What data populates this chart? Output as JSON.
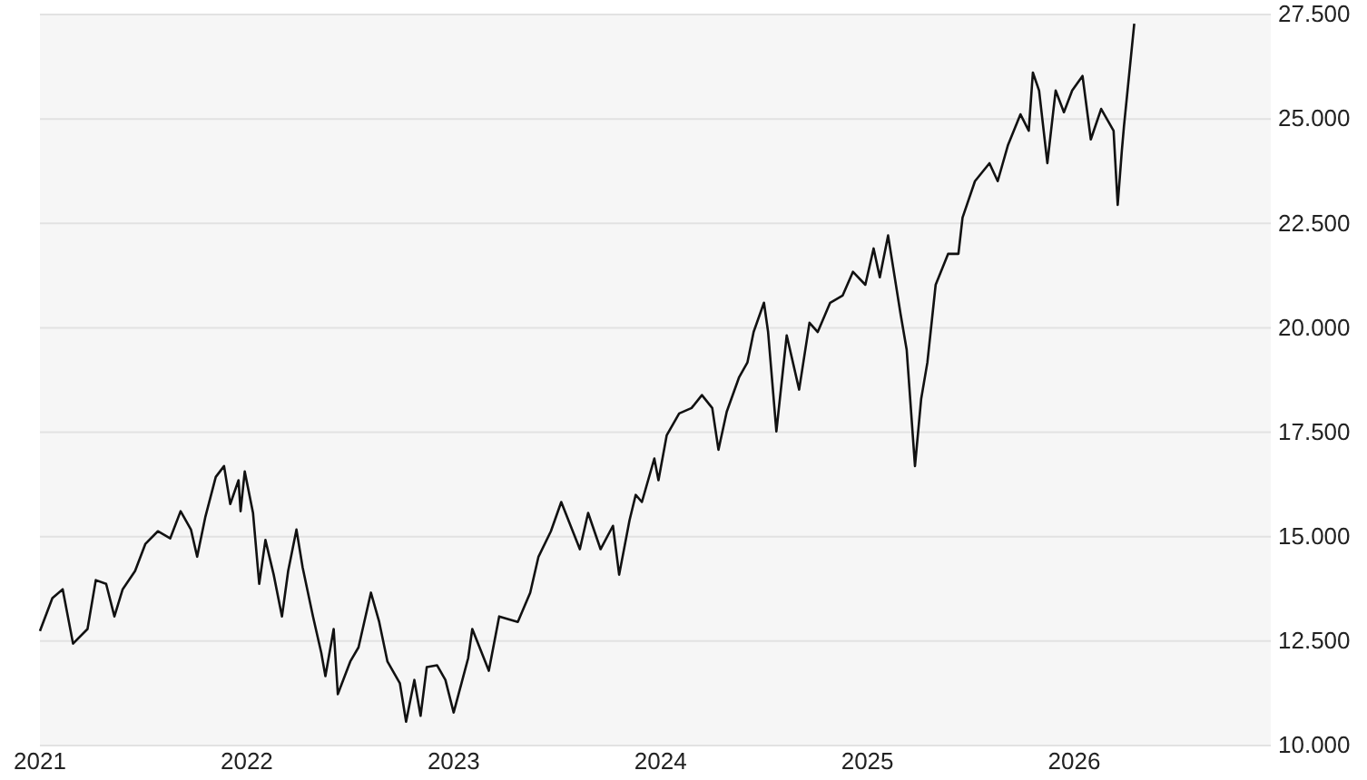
{
  "chart_data": {
    "type": "line",
    "color": "#111111",
    "x": [
      2021.0,
      2021.06,
      2021.11,
      2021.16,
      2021.23,
      2021.27,
      2021.32,
      2021.36,
      2021.4,
      2021.46,
      2021.51,
      2021.57,
      2021.63,
      2021.68,
      2021.73,
      2021.76,
      2021.8,
      2021.85,
      2021.89,
      2021.92,
      2021.96,
      2021.97,
      2021.99,
      2022.03,
      2022.06,
      2022.09,
      2022.13,
      2022.17,
      2022.2,
      2022.24,
      2022.27,
      2022.32,
      2022.36,
      2022.38,
      2022.42,
      2022.44,
      2022.5,
      2022.54,
      2022.6,
      2022.64,
      2022.68,
      2022.74,
      2022.77,
      2022.81,
      2022.84,
      2022.87,
      2022.92,
      2022.96,
      2023.0,
      2023.07,
      2023.09,
      2023.17,
      2023.22,
      2023.31,
      2023.37,
      2023.41,
      2023.47,
      2023.52,
      2023.61,
      2023.65,
      2023.71,
      2023.77,
      2023.8,
      2023.85,
      2023.88,
      2023.91,
      2023.97,
      2023.99,
      2024.03,
      2024.09,
      2024.15,
      2024.2,
      2024.25,
      2024.28,
      2024.32,
      2024.38,
      2024.42,
      2024.45,
      2024.5,
      2024.52,
      2024.56,
      2024.61,
      2024.67,
      2024.72,
      2024.76,
      2024.82,
      2024.88,
      2024.93,
      2024.99,
      2025.03,
      2025.06,
      2025.1,
      2025.16,
      2025.19,
      2025.23,
      2025.26,
      2025.29,
      2025.33,
      2025.39,
      2025.44,
      2025.46,
      2025.52,
      2025.59,
      2025.63,
      2025.68,
      2025.74,
      2025.78,
      2025.8,
      2025.83,
      2025.87,
      2025.91,
      2025.95,
      2025.99,
      2026.04,
      2026.08,
      2026.13,
      2026.19,
      2026.21,
      2026.23,
      2026.24,
      2026.29
    ],
    "values": [
      12740,
      13530,
      13740,
      12440,
      12790,
      13960,
      13870,
      13090,
      13740,
      14180,
      14830,
      15130,
      14960,
      15610,
      15170,
      14520,
      15480,
      16430,
      16690,
      15780,
      16350,
      15610,
      16560,
      15570,
      13870,
      14920,
      14090,
      13090,
      14180,
      15170,
      14260,
      13090,
      12220,
      11660,
      12790,
      11230,
      12010,
      12350,
      13660,
      12960,
      12010,
      11490,
      10570,
      11570,
      10710,
      11880,
      11920,
      11570,
      10790,
      12090,
      12790,
      11790,
      13090,
      12960,
      13660,
      14520,
      15130,
      15830,
      14700,
      15570,
      14700,
      15260,
      14090,
      15390,
      16000,
      15830,
      16870,
      16350,
      17430,
      17950,
      18080,
      18390,
      18080,
      17080,
      17990,
      18820,
      19170,
      19900,
      20600,
      19900,
      17520,
      19820,
      18520,
      20120,
      19900,
      20600,
      20770,
      21340,
      21030,
      21900,
      21210,
      22210,
      20340,
      19470,
      16690,
      18300,
      19170,
      21030,
      21770,
      21770,
      22640,
      23510,
      23940,
      23510,
      24380,
      25110,
      24720,
      26110,
      25680,
      23940,
      25680,
      25160,
      25680,
      26030,
      24510,
      25240,
      24720,
      22940,
      24240,
      24810,
      27280
    ],
    "xlim": [
      2021,
      2026.95
    ],
    "xticks": [
      2021,
      2022,
      2023,
      2024,
      2025,
      2026
    ],
    "ylim": [
      10000,
      27500
    ],
    "yticks": [
      {
        "value": 10000,
        "label": "10.000"
      },
      {
        "value": 12500,
        "label": "12.500"
      },
      {
        "value": 15000,
        "label": "15.000"
      },
      {
        "value": 17500,
        "label": "17.500"
      },
      {
        "value": 20000,
        "label": "20.000"
      },
      {
        "value": 22500,
        "label": "22.500"
      },
      {
        "value": 25000,
        "label": "25.000"
      },
      {
        "value": 27500,
        "label": "27.500"
      }
    ],
    "grid": "y",
    "marker": "none",
    "line_style": "solid"
  }
}
